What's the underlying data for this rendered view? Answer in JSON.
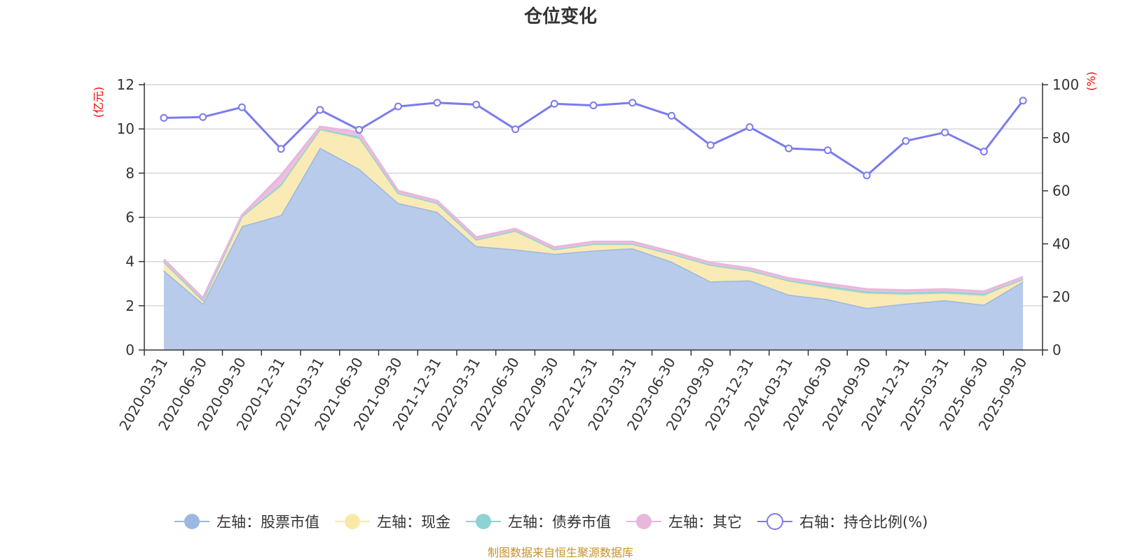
{
  "chart_data": {
    "type": "area",
    "title": "仓位变化",
    "left_unit": "(亿元)",
    "right_unit": "(%)",
    "source": "制图数据来自恒生聚源数据库",
    "categories": [
      "2020-03-31",
      "2020-06-30",
      "2020-09-30",
      "2020-12-31",
      "2021-03-31",
      "2021-06-30",
      "2021-09-30",
      "2021-12-31",
      "2022-03-31",
      "2022-06-30",
      "2022-09-30",
      "2022-12-31",
      "2023-03-31",
      "2023-06-30",
      "2023-09-30",
      "2023-12-31",
      "2024-03-31",
      "2024-06-30",
      "2024-09-30",
      "2024-12-31",
      "2025-03-31",
      "2025-06-30",
      "2025-09-30"
    ],
    "x_tick_labels": [
      "2020-03-31",
      "2020-06-30",
      "2020-09-30",
      "2020-12-31",
      "2021-03-31",
      "2021-06-30",
      "2021-09-30",
      "2021-12-31",
      "2022-03-31",
      "2022-06-30",
      "2022-09-30",
      "2022-12-31",
      "2023-03-31",
      "2023-06-30",
      "2023-09-30",
      "2023-12-31",
      "2024-03-31",
      "2024-06-30",
      "2024-09-30",
      "2024-12-31",
      "2025-03-31",
      "2025-06-30",
      "2025-09-30"
    ],
    "left_axis": {
      "min": 0,
      "max": 12,
      "ticks": [
        0,
        2,
        4,
        6,
        8,
        10,
        12
      ]
    },
    "right_axis": {
      "min": 0,
      "max": 100,
      "ticks": [
        0,
        20,
        40,
        60,
        80,
        100
      ]
    },
    "grid": true,
    "legend_position": "bottom",
    "series": [
      {
        "name": "左轴：股票市值",
        "axis": "left",
        "stack": true,
        "color": "#9bb8e0",
        "fill": "#b8cbea",
        "values": [
          3.6,
          2.1,
          5.6,
          6.1,
          9.15,
          8.2,
          6.65,
          6.25,
          4.7,
          4.55,
          4.35,
          4.5,
          4.6,
          4.0,
          3.1,
          3.15,
          2.5,
          2.3,
          1.9,
          2.1,
          2.25,
          2.05,
          3.1
        ]
      },
      {
        "name": "左轴：现金",
        "axis": "left",
        "stack": true,
        "color": "#fae9a6",
        "fill": "#faeab5",
        "values": [
          0.4,
          0.15,
          0.4,
          1.3,
          0.8,
          1.35,
          0.45,
          0.4,
          0.3,
          0.85,
          0.2,
          0.3,
          0.2,
          0.35,
          0.75,
          0.45,
          0.6,
          0.5,
          0.65,
          0.4,
          0.3,
          0.4,
          0.1
        ]
      },
      {
        "name": "左轴：债券市值",
        "axis": "left",
        "stack": true,
        "color": "#8ed3d3",
        "fill": "#9fd8d4",
        "values": [
          0,
          0,
          0.05,
          0.1,
          0.05,
          0.1,
          0,
          0,
          0,
          0,
          0,
          0,
          0,
          0,
          0,
          0,
          0.05,
          0.1,
          0.1,
          0.1,
          0.1,
          0.1,
          0
        ]
      },
      {
        "name": "左轴：其它",
        "axis": "left",
        "stack": true,
        "color": "#e9b7dc",
        "fill": "#edbfde",
        "values": [
          0.1,
          0.1,
          0.05,
          0.4,
          0.1,
          0.2,
          0.1,
          0.1,
          0.1,
          0.08,
          0.1,
          0.1,
          0.1,
          0.1,
          0.1,
          0.1,
          0.1,
          0.1,
          0.1,
          0.1,
          0.1,
          0.1,
          0.1
        ]
      },
      {
        "name": "右轴：持仓比例(%)",
        "axis": "right",
        "type": "line",
        "color": "#7b7bee",
        "values": [
          87.5,
          87.8,
          91.5,
          75.8,
          90.5,
          83.0,
          91.8,
          93.2,
          92.5,
          83.2,
          92.8,
          92.2,
          93.2,
          88.3,
          77.2,
          84.0,
          76.0,
          75.3,
          65.8,
          78.8,
          82.0,
          74.8,
          94.0
        ]
      }
    ]
  }
}
